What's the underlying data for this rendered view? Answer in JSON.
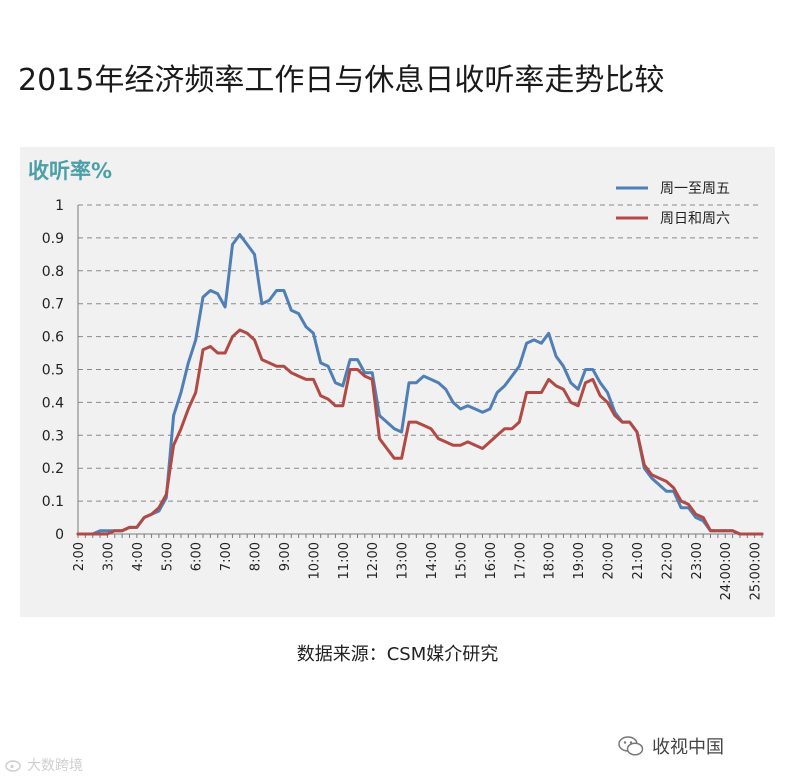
{
  "title": "2015年经济频率工作日与休息日收听率走势比较",
  "source": "数据来源：CSM媒介研究",
  "brand": {
    "text": "收视中国",
    "icon": "wechat-icon"
  },
  "watermark": {
    "text": "大数跨境",
    "icon": "weibo-icon"
  },
  "colors": {
    "weekday": "#4f7fb5",
    "weekend": "#b14a45",
    "panel": "#f1f1f1",
    "accent": "#4a9fa8"
  },
  "chart_data": {
    "type": "line",
    "title": "2015年经济频率工作日与休息日收听率走势比较",
    "ylabel": "收听率%",
    "ylim": [
      0,
      1
    ],
    "yticks": [
      "1",
      "0.9",
      "0.8",
      "0.7",
      "0.6",
      "0.5",
      "0.4",
      "0.3",
      "0.2",
      "0.1",
      "0"
    ],
    "xticks": [
      "2:00",
      "3:00",
      "4:00",
      "5:00",
      "6:00",
      "7:00",
      "8:00",
      "9:00",
      "10:00",
      "11:00",
      "12:00",
      "13:00",
      "14:00",
      "15:00",
      "16:00",
      "17:00",
      "18:00",
      "19:00",
      "20:00",
      "21:00",
      "22:00",
      "23:00",
      "24:00:00",
      "25:00:00"
    ],
    "grid": true,
    "legend": "top-right",
    "series": [
      {
        "name": "周一至周五",
        "values": [
          0,
          0,
          0,
          0.01,
          0.01,
          0.01,
          0.01,
          0.02,
          0.02,
          0.05,
          0.06,
          0.07,
          0.11,
          0.36,
          0.43,
          0.52,
          0.59,
          0.72,
          0.74,
          0.73,
          0.69,
          0.88,
          0.91,
          0.88,
          0.85,
          0.7,
          0.71,
          0.74,
          0.74,
          0.68,
          0.67,
          0.63,
          0.61,
          0.52,
          0.51,
          0.46,
          0.45,
          0.53,
          0.53,
          0.49,
          0.49,
          0.36,
          0.34,
          0.32,
          0.31,
          0.46,
          0.46,
          0.48,
          0.47,
          0.46,
          0.44,
          0.4,
          0.38,
          0.39,
          0.38,
          0.37,
          0.38,
          0.43,
          0.45,
          0.48,
          0.51,
          0.58,
          0.59,
          0.58,
          0.61,
          0.54,
          0.51,
          0.46,
          0.44,
          0.5,
          0.5,
          0.46,
          0.43,
          0.37,
          0.34,
          0.34,
          0.31,
          0.2,
          0.17,
          0.15,
          0.13,
          0.13,
          0.08,
          0.08,
          0.05,
          0.04,
          0.01,
          0.01,
          0.01,
          0.01,
          0,
          0,
          0,
          0
        ]
      },
      {
        "name": "周日和周六",
        "values": [
          0,
          0,
          0,
          0,
          0,
          0.01,
          0.01,
          0.02,
          0.02,
          0.05,
          0.06,
          0.08,
          0.12,
          0.27,
          0.32,
          0.38,
          0.43,
          0.56,
          0.57,
          0.55,
          0.55,
          0.6,
          0.62,
          0.61,
          0.59,
          0.53,
          0.52,
          0.51,
          0.51,
          0.49,
          0.48,
          0.47,
          0.47,
          0.42,
          0.41,
          0.39,
          0.39,
          0.5,
          0.5,
          0.48,
          0.47,
          0.29,
          0.26,
          0.23,
          0.23,
          0.34,
          0.34,
          0.33,
          0.32,
          0.29,
          0.28,
          0.27,
          0.27,
          0.28,
          0.27,
          0.26,
          0.28,
          0.3,
          0.32,
          0.32,
          0.34,
          0.43,
          0.43,
          0.43,
          0.47,
          0.45,
          0.44,
          0.4,
          0.39,
          0.46,
          0.47,
          0.42,
          0.4,
          0.36,
          0.34,
          0.34,
          0.31,
          0.21,
          0.18,
          0.17,
          0.16,
          0.14,
          0.1,
          0.09,
          0.06,
          0.05,
          0.01,
          0.01,
          0.01,
          0.01,
          0,
          0,
          0,
          0
        ]
      }
    ]
  }
}
